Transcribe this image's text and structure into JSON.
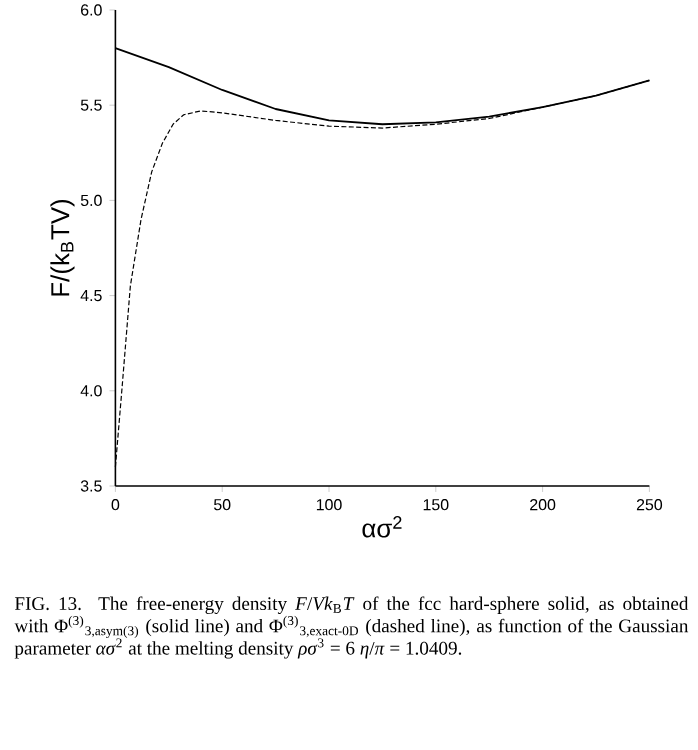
{
  "chart_data": {
    "type": "line",
    "xlabel": "ασ$^{2}$",
    "ylabel": "F/(k$_{B}$TV)",
    "xlim": [
      0,
      250
    ],
    "ylim": [
      3.5,
      6.0
    ],
    "xticks": [
      0,
      50,
      100,
      150,
      200,
      250
    ],
    "yticks": [
      {
        "value": 3.5,
        "label": "3.5"
      },
      {
        "value": 4.0,
        "label": "4.0"
      },
      {
        "value": 4.5,
        "label": "4.5"
      },
      {
        "value": 5.0,
        "label": "5.0"
      },
      {
        "value": 5.5,
        "label": "5.5"
      },
      {
        "value": 6.0,
        "label": "6.0"
      }
    ],
    "grid": false,
    "marker": "none",
    "series": [
      {
        "color": "#000000",
        "line_style": "solid",
        "x": [
          0,
          25,
          50,
          75,
          100,
          125,
          150,
          175,
          200,
          225,
          250
        ],
        "values": [
          5.8,
          5.7,
          5.58,
          5.48,
          5.42,
          5.4,
          5.41,
          5.44,
          5.49,
          5.55,
          5.63
        ]
      },
      {
        "color": "#000000",
        "line_style": "dashed",
        "x": [
          0,
          3,
          7,
          12,
          17,
          22,
          27,
          32,
          40,
          50,
          75,
          100,
          125,
          150,
          175,
          200,
          225,
          250
        ],
        "values": [
          3.6,
          4.0,
          4.55,
          4.9,
          5.15,
          5.3,
          5.4,
          5.45,
          5.47,
          5.46,
          5.42,
          5.39,
          5.38,
          5.4,
          5.43,
          5.49,
          5.55,
          5.63
        ]
      }
    ],
    "annotations": [
      "FIG. 13. The free-energy density *F*/*Vk*$_{B}$*T* of the fcc hard-sphere solid, as obtained with Φ$^{(3)}$$_{3,asym(3)}$ (solid line) and Φ$^{(3)}$$_{3,exact-0D}$ (dashed line), as function of the Gaussian parameter *ασ*$^{2}$ at the melting density *ρσ*$^{3}$ = 6 *η*/*π* = 1.0409."
    ]
  }
}
